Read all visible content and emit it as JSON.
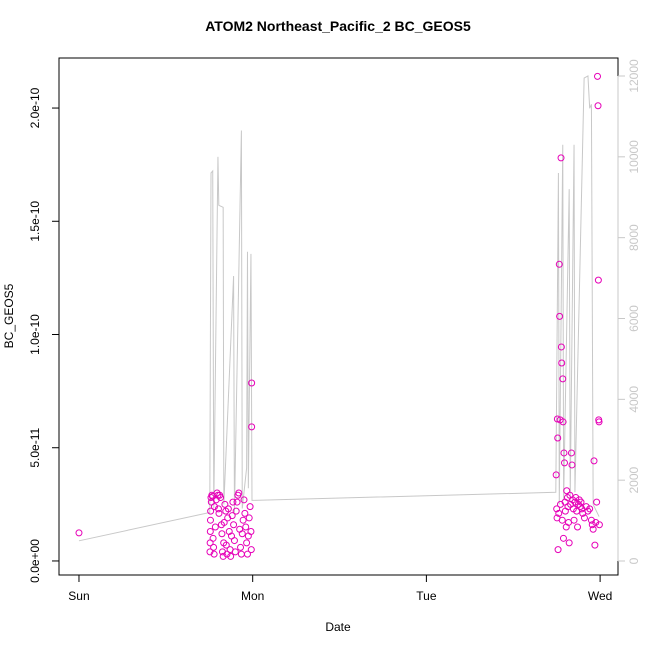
{
  "chart_data": {
    "type": "scatter",
    "title": "ATOM2 Northeast_Pacific_2 BC_GEOS5",
    "xlabel": "Date",
    "ylabel": "BC_GEOS5",
    "xlim": [
      -0.115,
      3.103
    ],
    "xticks": [
      {
        "value": 0,
        "label": "Sun"
      },
      {
        "value": 1,
        "label": "Mon"
      },
      {
        "value": 2,
        "label": "Tue"
      },
      {
        "value": 3,
        "label": "Wed"
      }
    ],
    "ylim": [
      -6.2e-12,
      2.221e-10
    ],
    "yticks": [
      {
        "value": 0,
        "label": "0.0e+00"
      },
      {
        "value": 5e-11,
        "label": "5.0e-11"
      },
      {
        "value": 1e-10,
        "label": "1.0e-10"
      },
      {
        "value": 1.5e-10,
        "label": "1.5e-10"
      },
      {
        "value": 2e-10,
        "label": "2.0e-10"
      }
    ],
    "y2lim": [
      -346,
      12445
    ],
    "y2ticks": [
      0,
      2000,
      4000,
      6000,
      8000,
      10000,
      12000
    ],
    "y2color": "#c8c8c8",
    "series": [
      {
        "type": "scatter",
        "color": "#e600b8",
        "x": [
          0.0,
          0.76,
          0.762,
          0.758,
          0.757,
          0.756,
          0.755,
          0.754,
          0.765,
          0.77,
          0.772,
          0.775,
          0.778,
          0.78,
          0.785,
          0.79,
          0.795,
          0.8,
          0.803,
          0.806,
          0.81,
          0.815,
          0.82,
          0.823,
          0.826,
          0.83,
          0.833,
          0.836,
          0.84,
          0.845,
          0.848,
          0.852,
          0.856,
          0.86,
          0.865,
          0.87,
          0.873,
          0.878,
          0.882,
          0.886,
          0.89,
          0.895,
          0.9,
          0.905,
          0.91,
          0.915,
          0.92,
          0.925,
          0.93,
          0.935,
          0.94,
          0.945,
          0.95,
          0.955,
          0.96,
          0.965,
          0.97,
          0.975,
          0.98,
          0.985,
          0.99,
          0.992,
          0.994,
          0.994,
          2.747,
          2.75,
          2.752,
          2.754,
          2.756,
          2.758,
          2.762,
          2.765,
          2.767,
          2.77,
          2.772,
          2.775,
          2.777,
          2.779,
          2.782,
          2.785,
          2.787,
          2.789,
          2.792,
          2.795,
          2.798,
          2.8,
          2.805,
          2.808,
          2.812,
          2.815,
          2.818,
          2.822,
          2.826,
          2.83,
          2.835,
          2.838,
          2.842,
          2.846,
          2.85,
          2.855,
          2.86,
          2.865,
          2.87,
          2.875,
          2.88,
          2.885,
          2.89,
          2.895,
          2.9,
          2.91,
          2.92,
          2.93,
          2.94,
          2.95,
          2.955,
          2.96,
          2.965,
          2.97,
          2.975,
          2.98,
          2.985,
          2.988,
          2.99,
          2.992,
          2.994,
          2.996
        ],
        "values": [
          1.24e-11,
          2.8e-11,
          2.6e-11,
          2.2e-11,
          1.8e-11,
          1.3e-11,
          8e-12,
          4e-12,
          2.9e-11,
          2.85e-11,
          1e-11,
          6e-12,
          3e-12,
          2.4e-11,
          1.5e-11,
          2.7e-11,
          3e-11,
          2.9e-11,
          2.3e-11,
          2.1e-11,
          2.9e-11,
          2.8e-11,
          1.6e-11,
          1.2e-11,
          4e-12,
          2e-12,
          8e-12,
          1.7e-11,
          2.5e-11,
          2.2e-11,
          7e-12,
          3e-12,
          1.9e-11,
          2.3e-11,
          1.3e-11,
          5e-12,
          2e-12,
          1.1e-11,
          2e-11,
          2.6e-11,
          1.6e-11,
          9e-12,
          4e-12,
          2.2e-11,
          2.6e-11,
          2.9e-11,
          3e-11,
          1.4e-11,
          6e-12,
          3e-12,
          1.2e-11,
          1.8e-11,
          2.7e-11,
          2.1e-11,
          1.5e-11,
          8e-12,
          3e-12,
          1.1e-11,
          1.9e-11,
          2.4e-11,
          1.3e-11,
          5e-12,
          7.86e-11,
          5.92e-11,
          3.8e-11,
          2.3e-11,
          1.9e-11,
          6.27e-11,
          5.43e-11,
          5e-12,
          2.1e-11,
          1.31e-10,
          1.08e-10,
          6.23e-11,
          2.5e-11,
          1.78e-10,
          9.45e-11,
          8.74e-11,
          1.8e-11,
          8.04e-11,
          6.14e-11,
          1e-11,
          4.77e-11,
          4.33e-11,
          2.6e-11,
          2.2e-11,
          1.5e-11,
          3.1e-11,
          2.8e-11,
          2.4e-11,
          1.7e-11,
          8e-12,
          2.9e-11,
          2.5e-11,
          4.77e-11,
          4.24e-11,
          2.7e-11,
          2.3e-11,
          1.8e-11,
          2.6e-11,
          2.8e-11,
          2.2e-11,
          1.5e-11,
          2.5e-11,
          2.7e-11,
          2.4e-11,
          2.6e-11,
          2.3e-11,
          2.1e-11,
          1.9e-11,
          2.4e-11,
          2.2e-11,
          2.3e-11,
          1.8e-11,
          1.6e-11,
          1.4e-11,
          4.42e-11,
          7e-12,
          1.7e-11,
          2.6e-11,
          2.14e-10,
          2.01e-10,
          1.24e-10,
          6.23e-11,
          6.14e-11,
          1.6e-11
        ]
      },
      {
        "type": "line",
        "axis": "y2",
        "color": "#c8c8c8",
        "x": [
          0.0,
          0.753,
          0.76,
          0.77,
          0.776,
          0.8,
          0.805,
          0.83,
          0.834,
          0.89,
          0.895,
          0.935,
          0.94,
          0.965,
          0.97,
          0.975,
          0.99,
          0.996,
          2.745,
          2.76,
          2.765,
          2.785,
          2.79,
          2.822,
          2.828,
          2.85,
          2.855,
          2.908,
          2.93,
          2.94,
          2.95,
          2.96,
          2.994
        ],
        "values": [
          500,
          1200,
          9600,
          9650,
          1300,
          10000,
          8800,
          8750,
          1400,
          7050,
          1200,
          10650,
          1300,
          2300,
          7650,
          1800,
          7600,
          1500,
          1700,
          9600,
          1400,
          10300,
          1500,
          9200,
          1600,
          10300,
          1700,
          11950,
          12000,
          11200,
          11300,
          1400,
          1100
        ]
      }
    ]
  }
}
